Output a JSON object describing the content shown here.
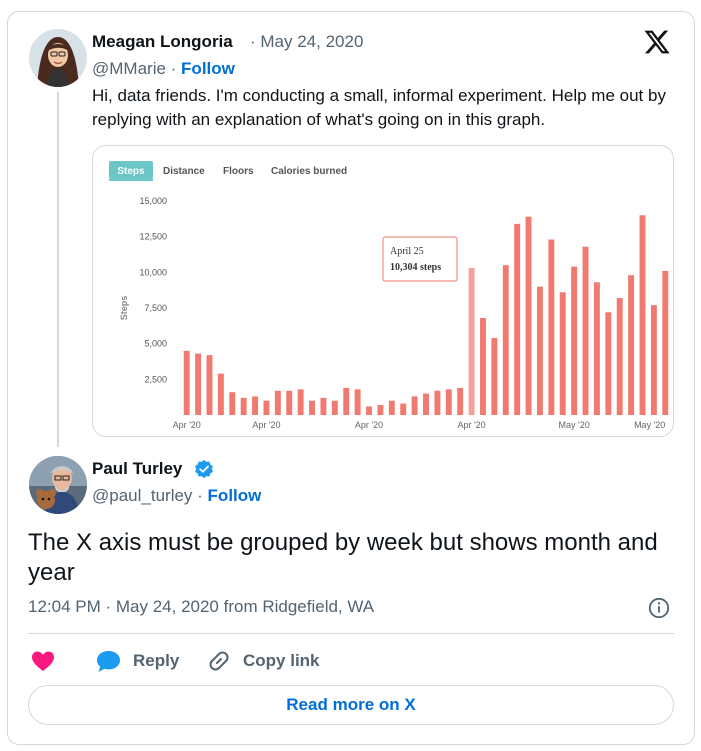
{
  "tweet": {
    "author_name": "Meagan Longoria",
    "date": "May 24, 2020",
    "handle": "@MMarie",
    "follow_label": "Follow",
    "text": "Hi, data friends. I'm conducting a small, informal experiment. Help me out by replying with an explanation of what's going on in this graph."
  },
  "reply": {
    "author_name": "Paul Turley",
    "handle": "@paul_turley",
    "follow_label": "Follow",
    "text": "The X axis must be grouped by week but shows month and year",
    "timestamp": "12:04 PM · May 24, 2020 from Ridgefield, WA"
  },
  "actions": {
    "reply_label": "Reply",
    "copy_link_label": "Copy link",
    "read_more_label": "Read more on X"
  },
  "icons": [
    "x-logo-icon",
    "verified-badge-icon",
    "info-icon",
    "heart-icon",
    "reply-bubble-icon",
    "link-icon"
  ],
  "colors": {
    "bar": "#f07a70",
    "bar_highlight": "#f5a09a",
    "tab_active": "#6ac6c8",
    "follow": "#006fd6",
    "heart": "#f91880",
    "reply_icon": "#1d9bf0",
    "verified": "#1d9bf0"
  },
  "chart_tabs": [
    "Steps",
    "Distance",
    "Floors",
    "Calories burned"
  ],
  "chart_data": {
    "type": "bar",
    "ylabel": "Steps",
    "ylim": [
      0,
      15000
    ],
    "yticks": [
      2500,
      5000,
      7500,
      10000,
      12500,
      15000
    ],
    "ytick_labels": [
      "2,500",
      "5,000",
      "7,500",
      "10,000",
      "12,500",
      "15,000"
    ],
    "xtick_labels": [
      "Apr '20",
      "Apr '20",
      "Apr '20",
      "Apr '20",
      "May '20",
      "May '20"
    ],
    "grid": false,
    "tooltip": {
      "date": "April 25",
      "value": "10,304 steps"
    },
    "highlight_index": 25,
    "values": [
      4500,
      4300,
      4200,
      2900,
      1600,
      1200,
      1300,
      1000,
      1700,
      1700,
      1800,
      1000,
      1200,
      1000,
      1900,
      1800,
      600,
      700,
      1000,
      800,
      1300,
      1500,
      1700,
      1800,
      1900,
      10304,
      6800,
      5400,
      10500,
      13400,
      13900,
      9000,
      12300,
      8600,
      10400,
      11800,
      9300,
      7200,
      8200,
      9800,
      14000,
      7700,
      10100
    ]
  }
}
